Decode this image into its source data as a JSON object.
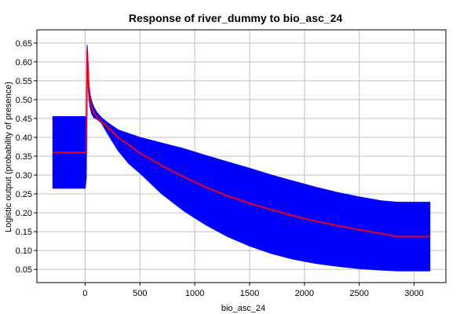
{
  "chart_data": {
    "type": "area",
    "title": "Response of river_dummy to bio_asc_24",
    "xlabel": "bio_asc_24",
    "ylabel": "Logistic output (probability of presence)",
    "xlim": [
      -440,
      3290
    ],
    "ylim": [
      0.015,
      0.685
    ],
    "xticks": [
      0,
      500,
      1000,
      1500,
      2000,
      2500,
      3000
    ],
    "yticks": [
      0.05,
      0.1,
      0.15,
      0.2,
      0.25,
      0.3,
      0.35,
      0.4,
      0.45,
      0.5,
      0.55,
      0.6,
      0.65
    ],
    "grid": true,
    "colors": {
      "band": "#0000ff",
      "mean": "#e8001c",
      "grid": "#c0c0c0",
      "frame": "#000000"
    },
    "series": [
      {
        "role": "mean",
        "x": [
          -295,
          10,
          12,
          15,
          18,
          22,
          28,
          35,
          45,
          60,
          80,
          110,
          150,
          200,
          300,
          400,
          500,
          700,
          900,
          1100,
          1300,
          1500,
          1700,
          1900,
          2100,
          2300,
          2500,
          2700,
          2850,
          3000,
          3145
        ],
        "y": [
          0.36,
          0.36,
          0.4,
          0.52,
          0.63,
          0.6,
          0.56,
          0.52,
          0.495,
          0.478,
          0.465,
          0.453,
          0.442,
          0.428,
          0.4,
          0.38,
          0.358,
          0.325,
          0.295,
          0.268,
          0.245,
          0.225,
          0.208,
          0.192,
          0.178,
          0.166,
          0.155,
          0.145,
          0.137,
          0.137,
          0.137
        ]
      },
      {
        "role": "upper",
        "x": [
          -295,
          0,
          10,
          12,
          15,
          18,
          22,
          28,
          35,
          45,
          60,
          80,
          110,
          150,
          200,
          300,
          400,
          500,
          700,
          900,
          1100,
          1300,
          1500,
          1700,
          1900,
          2100,
          2300,
          2500,
          2700,
          2850,
          3000,
          3145
        ],
        "y": [
          0.455,
          0.455,
          0.445,
          0.45,
          0.56,
          0.645,
          0.63,
          0.59,
          0.545,
          0.515,
          0.495,
          0.48,
          0.465,
          0.452,
          0.44,
          0.42,
          0.41,
          0.4,
          0.385,
          0.37,
          0.352,
          0.335,
          0.318,
          0.3,
          0.284,
          0.268,
          0.254,
          0.242,
          0.232,
          0.228,
          0.228,
          0.228
        ]
      },
      {
        "role": "lower",
        "x": [
          -295,
          0,
          10,
          12,
          15,
          18,
          22,
          28,
          35,
          45,
          60,
          80,
          110,
          150,
          200,
          300,
          400,
          500,
          700,
          900,
          1100,
          1300,
          1500,
          1700,
          1900,
          2100,
          2300,
          2500,
          2700,
          2850,
          3000,
          3145
        ],
        "y": [
          0.265,
          0.265,
          0.29,
          0.35,
          0.48,
          0.6,
          0.57,
          0.53,
          0.5,
          0.48,
          0.462,
          0.452,
          0.448,
          0.438,
          0.412,
          0.365,
          0.33,
          0.305,
          0.25,
          0.205,
          0.168,
          0.137,
          0.112,
          0.092,
          0.077,
          0.066,
          0.058,
          0.052,
          0.048,
          0.046,
          0.046,
          0.046
        ]
      }
    ]
  }
}
